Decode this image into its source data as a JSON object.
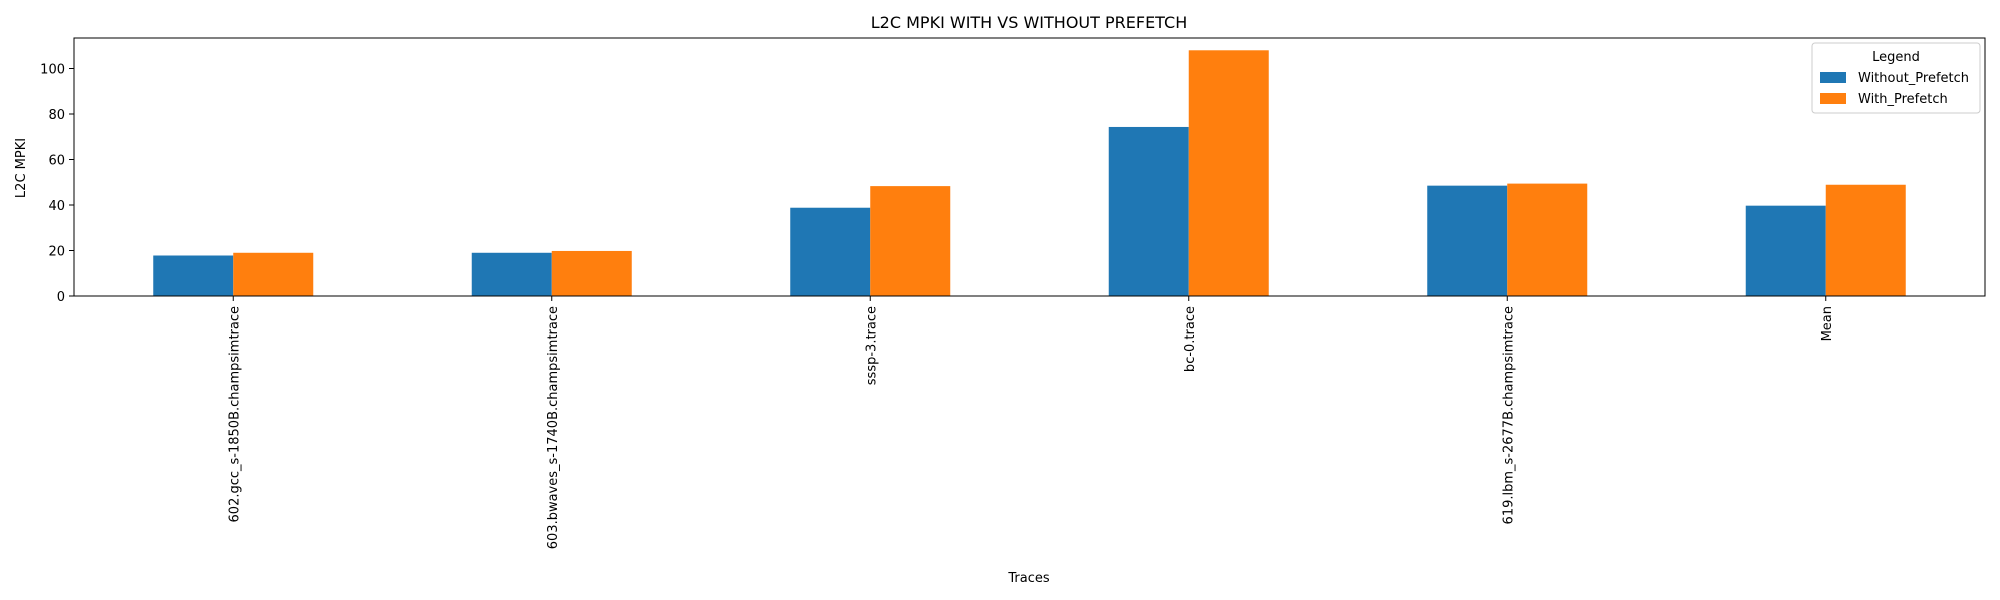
{
  "chart_data": {
    "type": "bar",
    "title": "L2C MPKI WITH VS WITHOUT PREFETCH",
    "xlabel": "Traces",
    "ylabel": "L2C MPKI",
    "categories": [
      "602.gcc_s-1850B.champsimtrace",
      "603.bwaves_s-1740B.champsimtrace",
      "sssp-3.trace",
      "bc-0.trace",
      "619.lbm_s-2677B.champsimtrace",
      "Mean"
    ],
    "series": [
      {
        "name": "Without_Prefetch",
        "color": "#1f77b4",
        "values": [
          17.8,
          19.0,
          38.8,
          74.3,
          48.5,
          39.7
        ]
      },
      {
        "name": "With_Prefetch",
        "color": "#ff7f0e",
        "values": [
          19.0,
          19.8,
          48.3,
          108.0,
          49.4,
          48.9
        ]
      }
    ],
    "ylim": [
      0,
      113.4
    ],
    "yticks": [
      0,
      20,
      40,
      60,
      80,
      100
    ],
    "grid": false,
    "legend": {
      "title": "Legend",
      "position": "top-right"
    }
  }
}
